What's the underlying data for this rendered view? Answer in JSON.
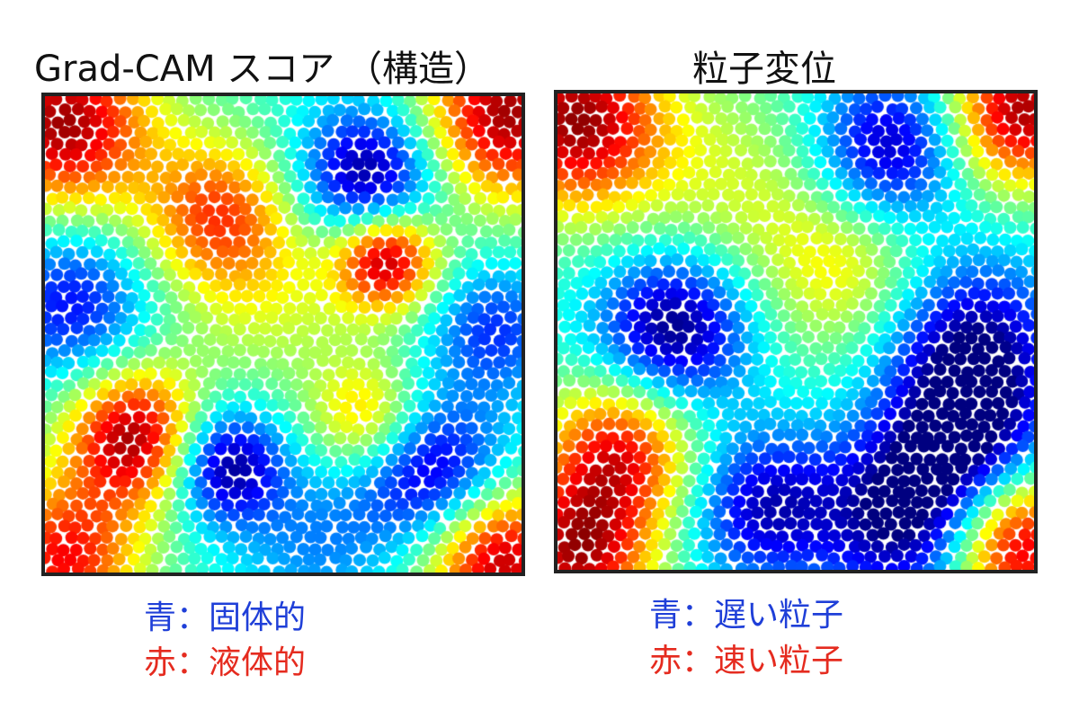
{
  "left": {
    "title": "Grad-CAM スコア （構造）",
    "legend": {
      "blue": "青：固体的",
      "red": "赤：液体的"
    }
  },
  "right": {
    "title": "粒子変位",
    "legend": {
      "blue": "青：遅い粒子",
      "red": "赤：速い粒子"
    }
  },
  "colors": {
    "low": "#0000b0",
    "high": "#b00000",
    "legend_blue": "#1f3fd8",
    "legend_red": "#e52b1f",
    "frame": "#222222"
  },
  "colormap": "jet"
}
